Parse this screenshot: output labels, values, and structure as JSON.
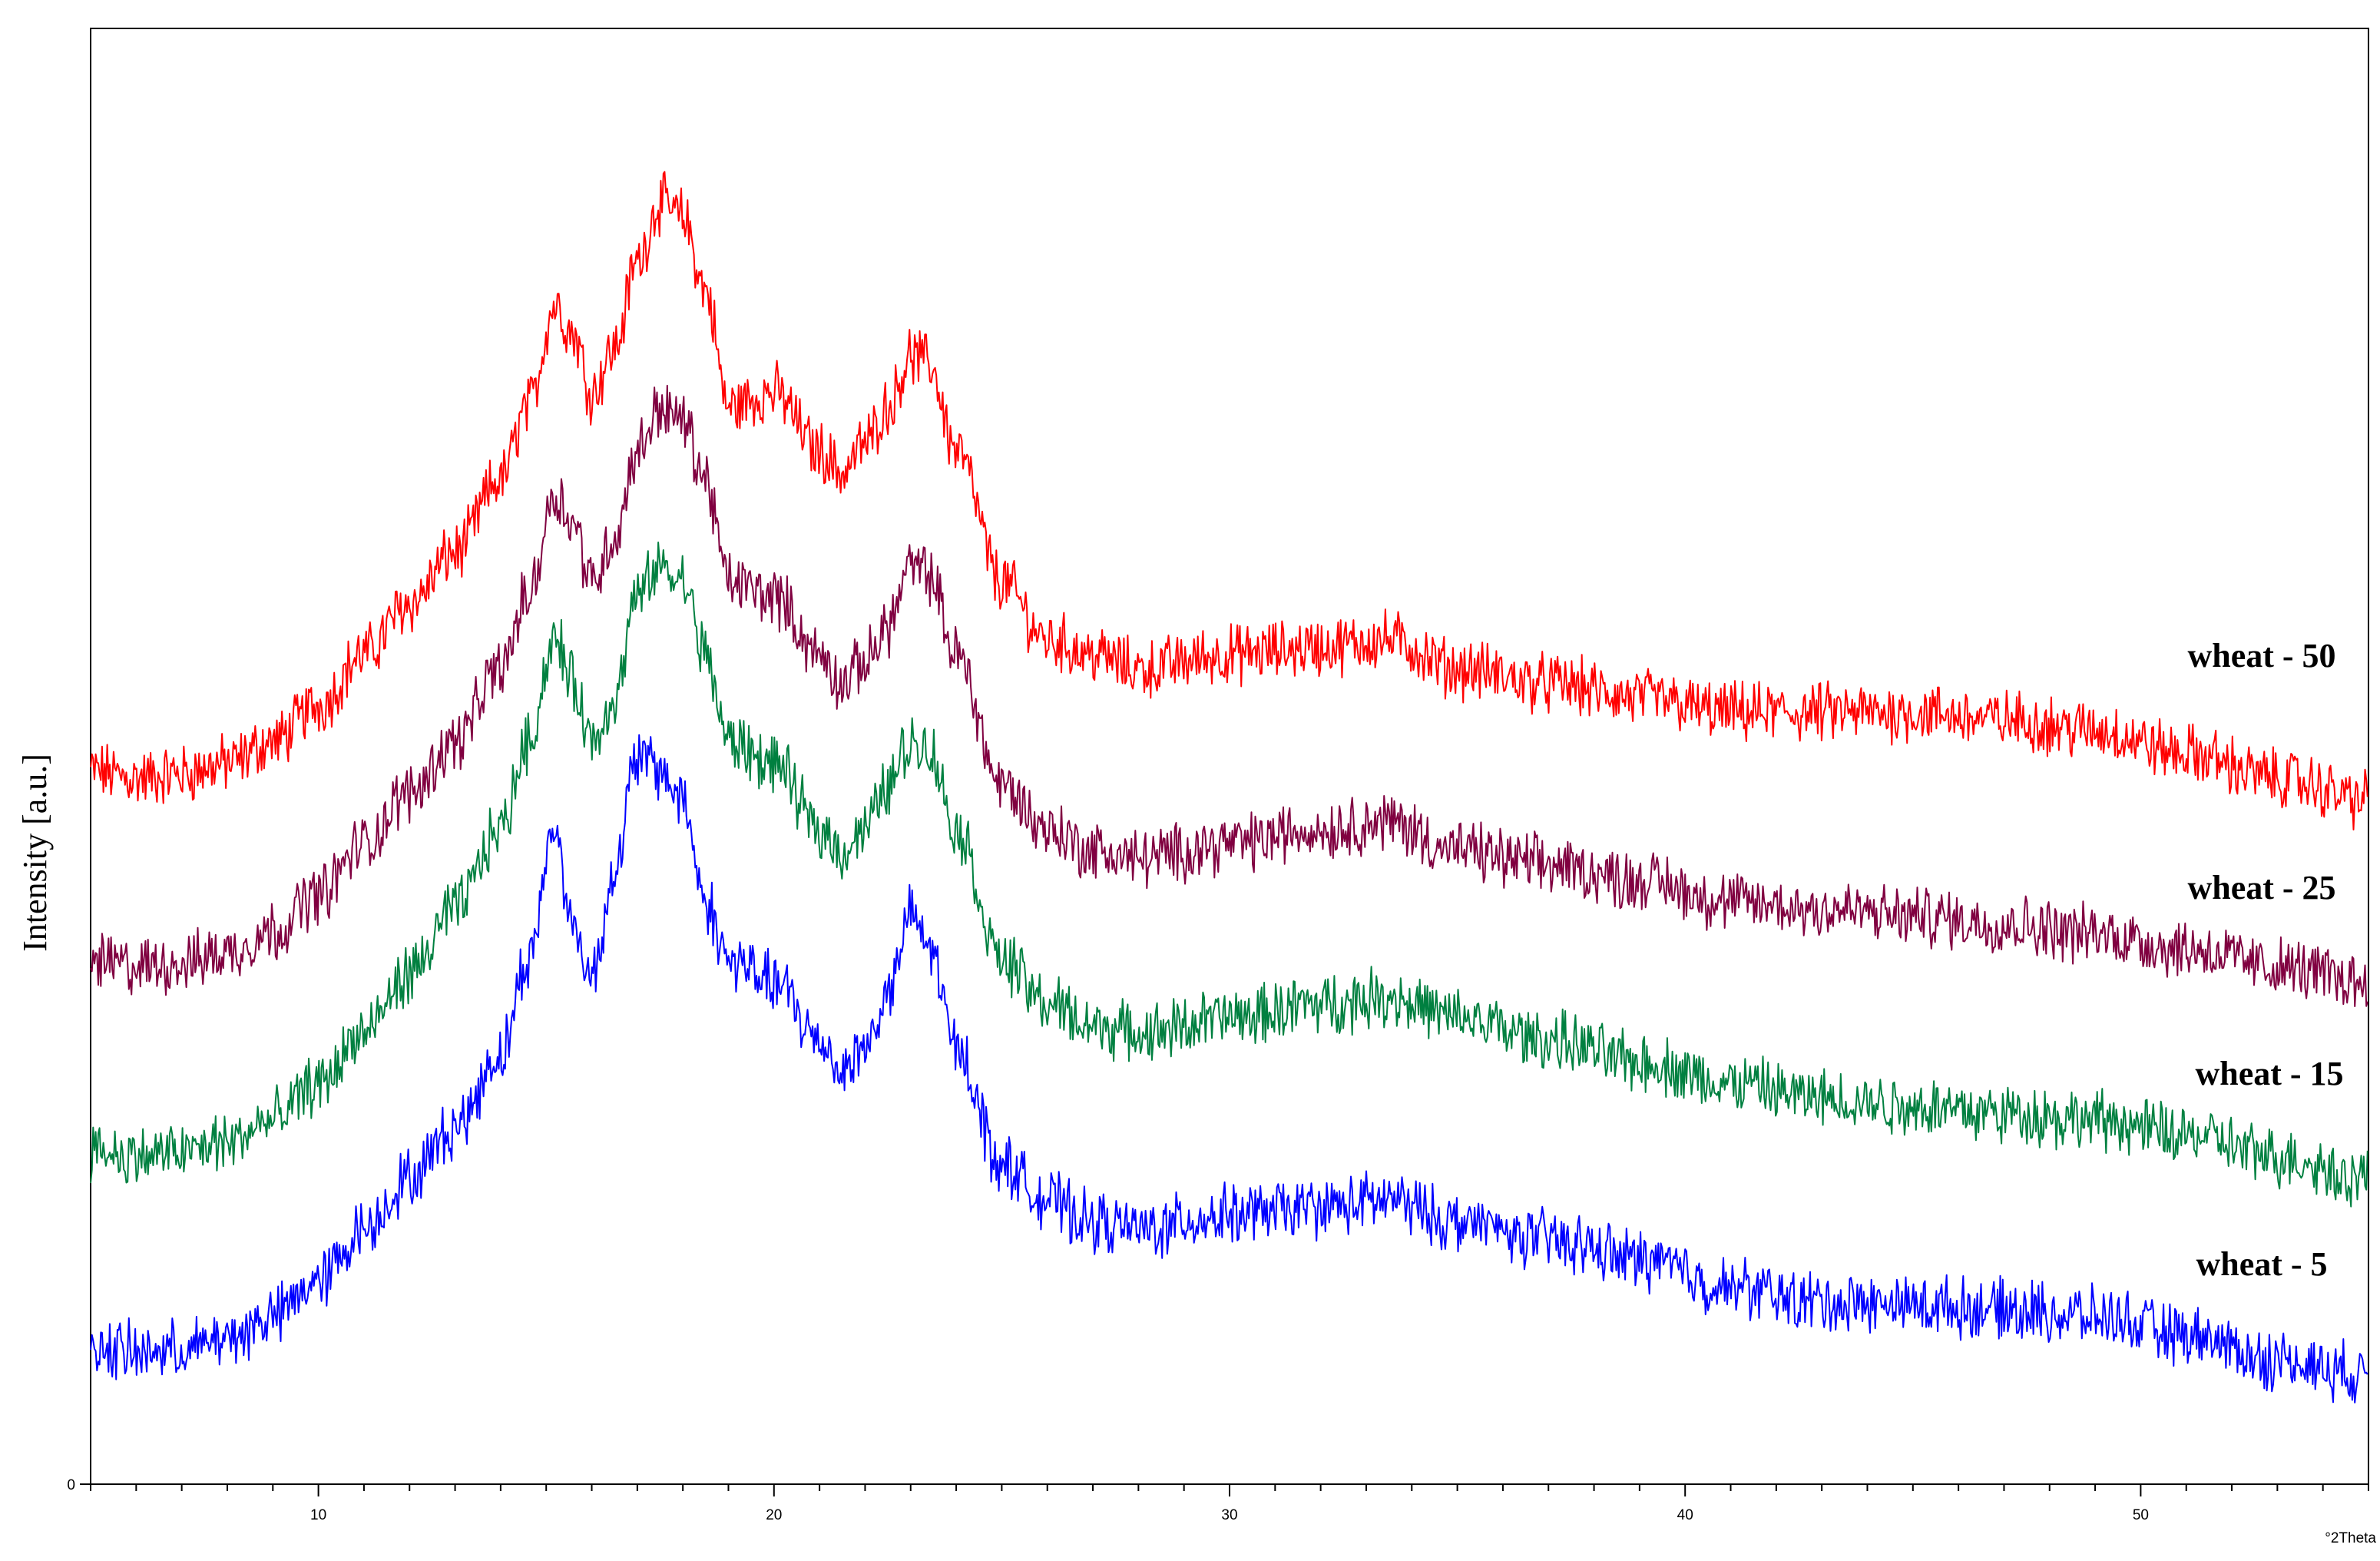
{
  "chart_data": {
    "type": "line",
    "title": "",
    "xlabel": "°2Theta",
    "ylabel": "Intensity [a.u.]",
    "xlim": [
      5,
      55
    ],
    "ylim": [
      0,
      100
    ],
    "grid": false,
    "legend": "inline-right",
    "x_ticks": [
      10,
      20,
      30,
      40,
      50
    ],
    "x_tick_labels": [
      "10",
      "20",
      "30",
      "40",
      "50"
    ],
    "y_ticks": [
      0
    ],
    "y_tick_labels": [
      "0"
    ],
    "series": [
      {
        "name": "wheat - 50",
        "color": "#ff0000",
        "x": [
          5,
          6,
          7,
          8,
          9,
          10,
          11,
          12,
          13,
          14,
          14.6,
          15.2,
          15.6,
          16,
          16.5,
          17,
          17.5,
          18,
          18.5,
          19,
          20,
          21,
          21.5,
          22,
          22.5,
          23,
          23.4,
          24,
          25,
          26,
          27,
          28,
          30,
          32,
          33.5,
          35,
          37,
          39,
          41,
          43,
          45,
          47,
          49,
          51,
          53,
          55
        ],
        "y": [
          49,
          48.5,
          48.8,
          49.5,
          51,
          53.5,
          57,
          60.5,
          64,
          69,
          74,
          81,
          79,
          75,
          78,
          84,
          88,
          87,
          82,
          74,
          75,
          71,
          69.5,
          71.5,
          74,
          77.5,
          77,
          71,
          62,
          58,
          57,
          56,
          57,
          57.5,
          58,
          56,
          55,
          54,
          53,
          53,
          53,
          52.5,
          51.8,
          50.2,
          48.5,
          47
        ]
      },
      {
        "name": "wheat - 25",
        "color": "#800040",
        "x": [
          5,
          6,
          7,
          8,
          9,
          10,
          11,
          12,
          13,
          14,
          14.6,
          15.2,
          15.6,
          16,
          16.5,
          17,
          17.5,
          18,
          18.5,
          19,
          20,
          21,
          21.5,
          22,
          22.5,
          23,
          23.4,
          24,
          25,
          26,
          27,
          28,
          30,
          32,
          33.5,
          35,
          37,
          39,
          41,
          43,
          45,
          47,
          49,
          51,
          53,
          55
        ],
        "y": [
          36,
          35.5,
          35.8,
          36.5,
          38,
          40.5,
          44,
          47.5,
          51,
          56,
          61,
          68,
          66,
          62,
          65,
          71,
          74,
          73,
          69,
          62,
          61,
          57,
          55,
          56.5,
          59,
          63,
          62.5,
          57,
          48,
          45,
          43.5,
          43,
          44,
          45,
          45.5,
          43.5,
          42.5,
          41.5,
          40,
          39.5,
          39,
          38.5,
          37.8,
          36.8,
          35.5,
          34.5
        ]
      },
      {
        "name": "wheat - 15",
        "color": "#008040",
        "x": [
          5,
          6,
          7,
          8,
          9,
          10,
          11,
          12,
          13,
          14,
          14.6,
          15.2,
          15.6,
          16,
          16.5,
          17,
          17.5,
          18,
          18.5,
          19,
          20,
          21,
          21.5,
          22,
          22.5,
          23,
          23.4,
          24,
          25,
          26,
          27,
          28,
          30,
          32,
          33.5,
          35,
          37,
          39,
          41,
          43,
          45,
          47,
          49,
          51,
          53,
          55
        ],
        "y": [
          23,
          22.5,
          22.8,
          23.5,
          25,
          27.5,
          31,
          35,
          39.5,
          45,
          51,
          58,
          55,
          51,
          54,
          61,
          63,
          62,
          57,
          51,
          49.5,
          45,
          43.5,
          45,
          48,
          51,
          50.5,
          45,
          36,
          33,
          31.5,
          31,
          32,
          33,
          33.5,
          32,
          30.5,
          29,
          27.5,
          26.5,
          26,
          25.5,
          25,
          24,
          22.5,
          21
        ]
      },
      {
        "name": "wheat - 5",
        "color": "#0000ff",
        "x": [
          5,
          6,
          7,
          8,
          9,
          10,
          11,
          12,
          13,
          14,
          14.6,
          15.2,
          15.6,
          16,
          16.5,
          17,
          17.5,
          18,
          18.5,
          19,
          20,
          21,
          21.5,
          22,
          22.5,
          23,
          23.4,
          24,
          25,
          26,
          27,
          28,
          30,
          32,
          33.5,
          35,
          37,
          39,
          41,
          43,
          45,
          47,
          49,
          51,
          53,
          55
        ],
        "y": [
          9.5,
          9,
          9.2,
          10,
          11.5,
          14,
          17.5,
          21,
          24.5,
          29.5,
          36,
          45,
          38,
          35,
          42,
          50,
          49,
          47,
          40,
          36,
          34.5,
          30.5,
          28.5,
          30,
          33.5,
          39,
          37,
          30,
          22,
          19.5,
          18,
          17.5,
          18.5,
          19,
          19.5,
          18,
          16.8,
          15.5,
          13.5,
          12.5,
          12.3,
          12,
          11.5,
          10.2,
          8.5,
          7.5
        ]
      }
    ]
  }
}
